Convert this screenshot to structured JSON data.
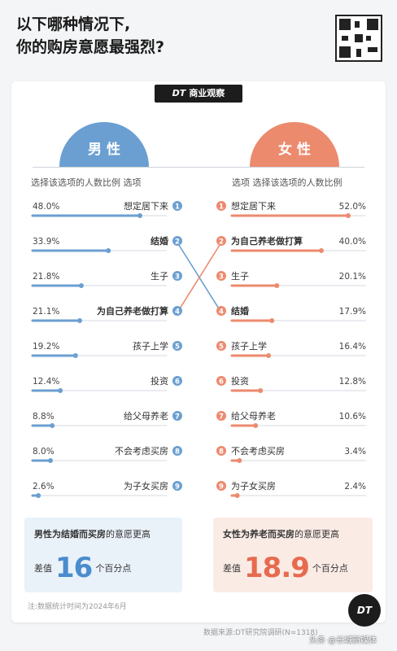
{
  "header": {
    "title_line1": "以下哪种情况下,",
    "title_line2": "你的购房意愿最强烈?",
    "brand_logo": "DT",
    "brand_name": "商业观察"
  },
  "legend": {
    "male": "男 性",
    "female": "女 性"
  },
  "col_headers": {
    "male": "选择该选项的人数比例  选项",
    "female": "选项  选择该选项的人数比例"
  },
  "colors": {
    "male": "#6b9fd1",
    "female": "#ec8a6e",
    "track": "#d5dae0"
  },
  "chart_data": {
    "type": "bar",
    "unit": "%",
    "xlim": [
      0,
      60
    ],
    "male": [
      {
        "rank": "1",
        "label": "想定居下来",
        "value": 48.0,
        "value_label": "48.0%"
      },
      {
        "rank": "2",
        "label": "结婚",
        "value": 33.9,
        "value_label": "33.9%",
        "bold": true
      },
      {
        "rank": "3",
        "label": "生子",
        "value": 21.8,
        "value_label": "21.8%"
      },
      {
        "rank": "4",
        "label": "为自己养老做打算",
        "value": 21.1,
        "value_label": "21.1%",
        "bold": true
      },
      {
        "rank": "5",
        "label": "孩子上学",
        "value": 19.2,
        "value_label": "19.2%"
      },
      {
        "rank": "6",
        "label": "投资",
        "value": 12.4,
        "value_label": "12.4%"
      },
      {
        "rank": "7",
        "label": "给父母养老",
        "value": 8.8,
        "value_label": "8.8%"
      },
      {
        "rank": "8",
        "label": "不会考虑买房",
        "value": 8.0,
        "value_label": "8.0%"
      },
      {
        "rank": "9",
        "label": "为子女买房",
        "value": 2.6,
        "value_label": "2.6%"
      }
    ],
    "female": [
      {
        "rank": "1",
        "label": "想定居下来",
        "value": 52.0,
        "value_label": "52.0%"
      },
      {
        "rank": "2",
        "label": "为自己养老做打算",
        "value": 40.0,
        "value_label": "40.0%",
        "bold": true
      },
      {
        "rank": "3",
        "label": "生子",
        "value": 20.1,
        "value_label": "20.1%"
      },
      {
        "rank": "4",
        "label": "结婚",
        "value": 17.9,
        "value_label": "17.9%",
        "bold": true
      },
      {
        "rank": "5",
        "label": "孩子上学",
        "value": 16.4,
        "value_label": "16.4%"
      },
      {
        "rank": "6",
        "label": "投资",
        "value": 12.8,
        "value_label": "12.8%"
      },
      {
        "rank": "7",
        "label": "给父母养老",
        "value": 10.6,
        "value_label": "10.6%"
      },
      {
        "rank": "8",
        "label": "不会考虑买房",
        "value": 3.4,
        "value_label": "3.4%"
      },
      {
        "rank": "9",
        "label": "为子女买房",
        "value": 2.4,
        "value_label": "2.4%"
      }
    ],
    "links": [
      {
        "from_side": "male",
        "from_rank": 2,
        "to_rank": 4
      },
      {
        "from_side": "female",
        "from_rank": 2,
        "to_rank": 4
      }
    ]
  },
  "summary": {
    "male": {
      "title_bold": "男性为结婚而买房",
      "title_rest": "的意愿更高",
      "prefix": "差值",
      "number": "16",
      "suffix": "个百分点"
    },
    "female": {
      "title_bold": "女性为养老而买房",
      "title_rest": "的意愿更高",
      "prefix": "差值",
      "number": "18.9",
      "suffix": "个百分点"
    }
  },
  "footer": {
    "note": "注:数据统计时间为2024年6月",
    "source": "数据来源:DT研究院调研(N=1318)",
    "badge": "DT",
    "watermark": "头条 @长城新媒体"
  }
}
